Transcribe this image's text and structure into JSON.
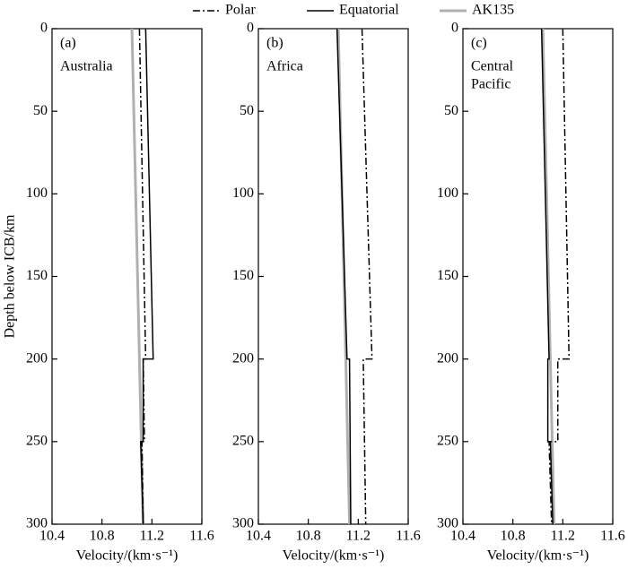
{
  "chart_data": {
    "type": "line",
    "xlabel": "Velocity/(km·s⁻¹)",
    "ylabel": "Depth below ICB/km",
    "xlim": [
      10.4,
      11.6
    ],
    "xticks": [
      10.4,
      10.8,
      11.2,
      11.6
    ],
    "ylim": [
      0,
      300
    ],
    "yticks": [
      0,
      50,
      100,
      150,
      200,
      250,
      300
    ],
    "legend": [
      {
        "name": "Polar",
        "color": "#000000",
        "dash": "8 3 2 3"
      },
      {
        "name": "Equatorial",
        "color": "#000000",
        "dash": "none"
      },
      {
        "name": "AK135",
        "color": "#b0b0b0",
        "dash": "none"
      }
    ],
    "panels": [
      {
        "label": "(a)",
        "region": [
          "Australia"
        ],
        "series": [
          {
            "x": [
              11.1,
              11.15,
              11.13,
              11.14,
              11.12,
              11.13
            ],
            "depth": [
              0,
              200,
              200,
              250,
              250,
              300
            ]
          },
          {
            "x": [
              11.15,
              11.21,
              11.13,
              11.13,
              11.11,
              11.13
            ],
            "depth": [
              0,
              200,
              200,
              250,
              250,
              300
            ]
          },
          {
            "x": [
              11.04,
              11.1,
              11.13
            ],
            "depth": [
              0,
              200,
              300
            ]
          }
        ]
      },
      {
        "label": "(b)",
        "region": [
          "Africa"
        ],
        "series": [
          {
            "x": [
              11.23,
              11.31,
              11.24,
              11.26
            ],
            "depth": [
              0,
              200,
              200,
              300
            ]
          },
          {
            "x": [
              11.03,
              11.11,
              11.13,
              11.14
            ],
            "depth": [
              0,
              200,
              200,
              300
            ]
          },
          {
            "x": [
              11.04,
              11.1,
              11.13
            ],
            "depth": [
              0,
              200,
              300
            ]
          }
        ]
      },
      {
        "label": "(c)",
        "region": [
          "Central",
          "Pacific"
        ],
        "series": [
          {
            "x": [
              11.2,
              11.25,
              11.16,
              11.16,
              11.09,
              11.11
            ],
            "depth": [
              0,
              200,
              200,
              250,
              250,
              300
            ]
          },
          {
            "x": [
              11.03,
              11.09,
              11.08,
              11.08,
              11.1,
              11.12
            ],
            "depth": [
              0,
              200,
              200,
              250,
              250,
              300
            ]
          },
          {
            "x": [
              11.04,
              11.1,
              11.13
            ],
            "depth": [
              0,
              200,
              300
            ]
          }
        ]
      }
    ]
  }
}
